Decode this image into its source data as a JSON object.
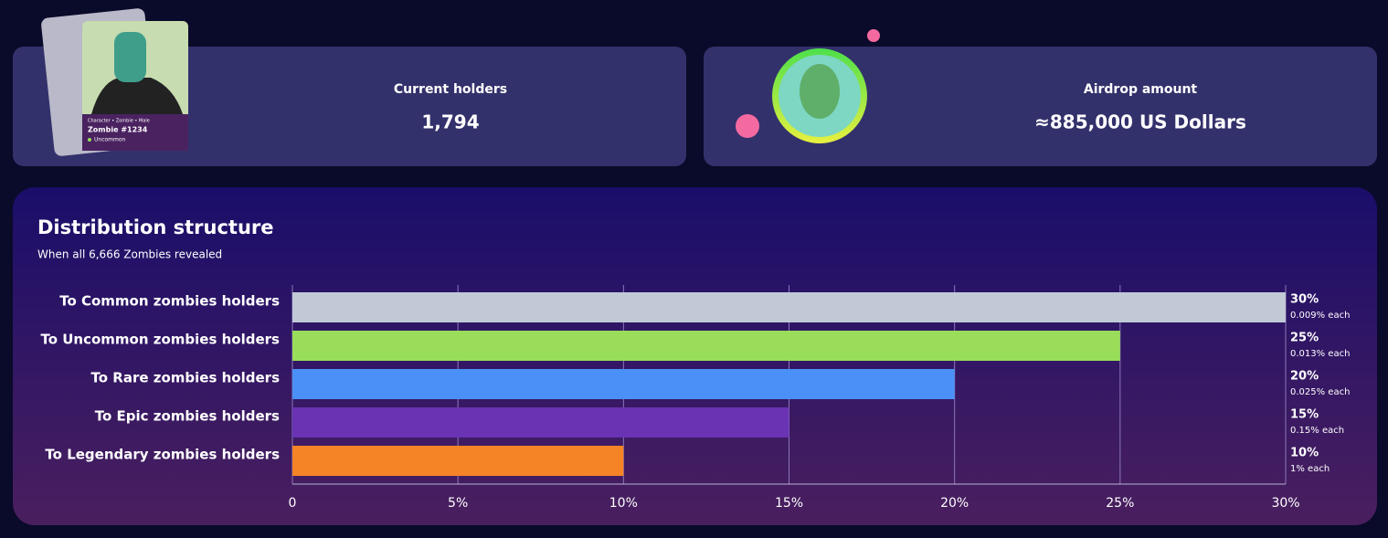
{
  "cards": [
    {
      "label": "Current holders",
      "value": "1,794",
      "nft_meta": "Character • Zombie • Male",
      "nft_name": "Zombie #1234",
      "nft_rarity": "Uncommon"
    },
    {
      "label": "Airdrop amount",
      "value": "≈885,000 US Dollars"
    }
  ],
  "chart_data": {
    "type": "hbar",
    "title": "Distribution structure",
    "subtitle": "When all 6,666 Zombies revealed",
    "categories": [
      "To Common zombies holders",
      "To Uncommon zombies holders",
      "To Rare zombies holders",
      "To Epic zombies holders",
      "To Legendary zombies holders"
    ],
    "values": [
      30,
      25,
      20,
      15,
      10
    ],
    "value_labels": [
      "30%",
      "25%",
      "20%",
      "15%",
      "10%"
    ],
    "sub_labels": [
      "0.009% each",
      "0.013% each",
      "0.025% each",
      "0.15% each",
      "1% each"
    ],
    "colors": [
      "#c1c9d6",
      "#99dd5a",
      "#4a90f7",
      "#6a33b4",
      "#f58426"
    ],
    "xlim": [
      0,
      30
    ],
    "xticks": [
      {
        "value": 0,
        "label": "0"
      },
      {
        "value": 5,
        "label": "5%"
      },
      {
        "value": 10,
        "label": "10%"
      },
      {
        "value": 15,
        "label": "15%"
      },
      {
        "value": 20,
        "label": "20%"
      },
      {
        "value": 25,
        "label": "25%"
      },
      {
        "value": 30,
        "label": "30%"
      }
    ],
    "grid": true
  }
}
